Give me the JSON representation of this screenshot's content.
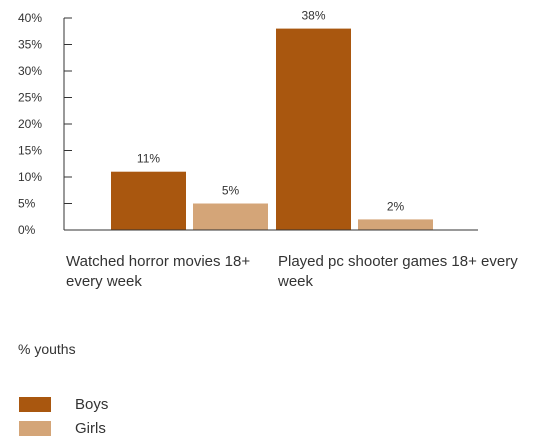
{
  "chart_data": {
    "type": "bar",
    "categories": [
      "Watched horror movies 18+ every week",
      "Played pc shooter games 18+ every week"
    ],
    "series": [
      {
        "name": "Boys",
        "values": [
          11,
          38
        ],
        "color": "#a9570f"
      },
      {
        "name": "Girls",
        "values": [
          5,
          2
        ],
        "color": "#d4a578"
      }
    ],
    "value_labels": [
      [
        "11%",
        "38%"
      ],
      [
        "5%",
        "2%"
      ]
    ],
    "ylim": [
      0,
      40
    ],
    "yticks": [
      "0%",
      "5%",
      "10%",
      "15%",
      "20%",
      "25%",
      "30%",
      "35%",
      "40%"
    ],
    "ylabel": "% youths",
    "legend_position": "bottom-left",
    "grid": false
  }
}
